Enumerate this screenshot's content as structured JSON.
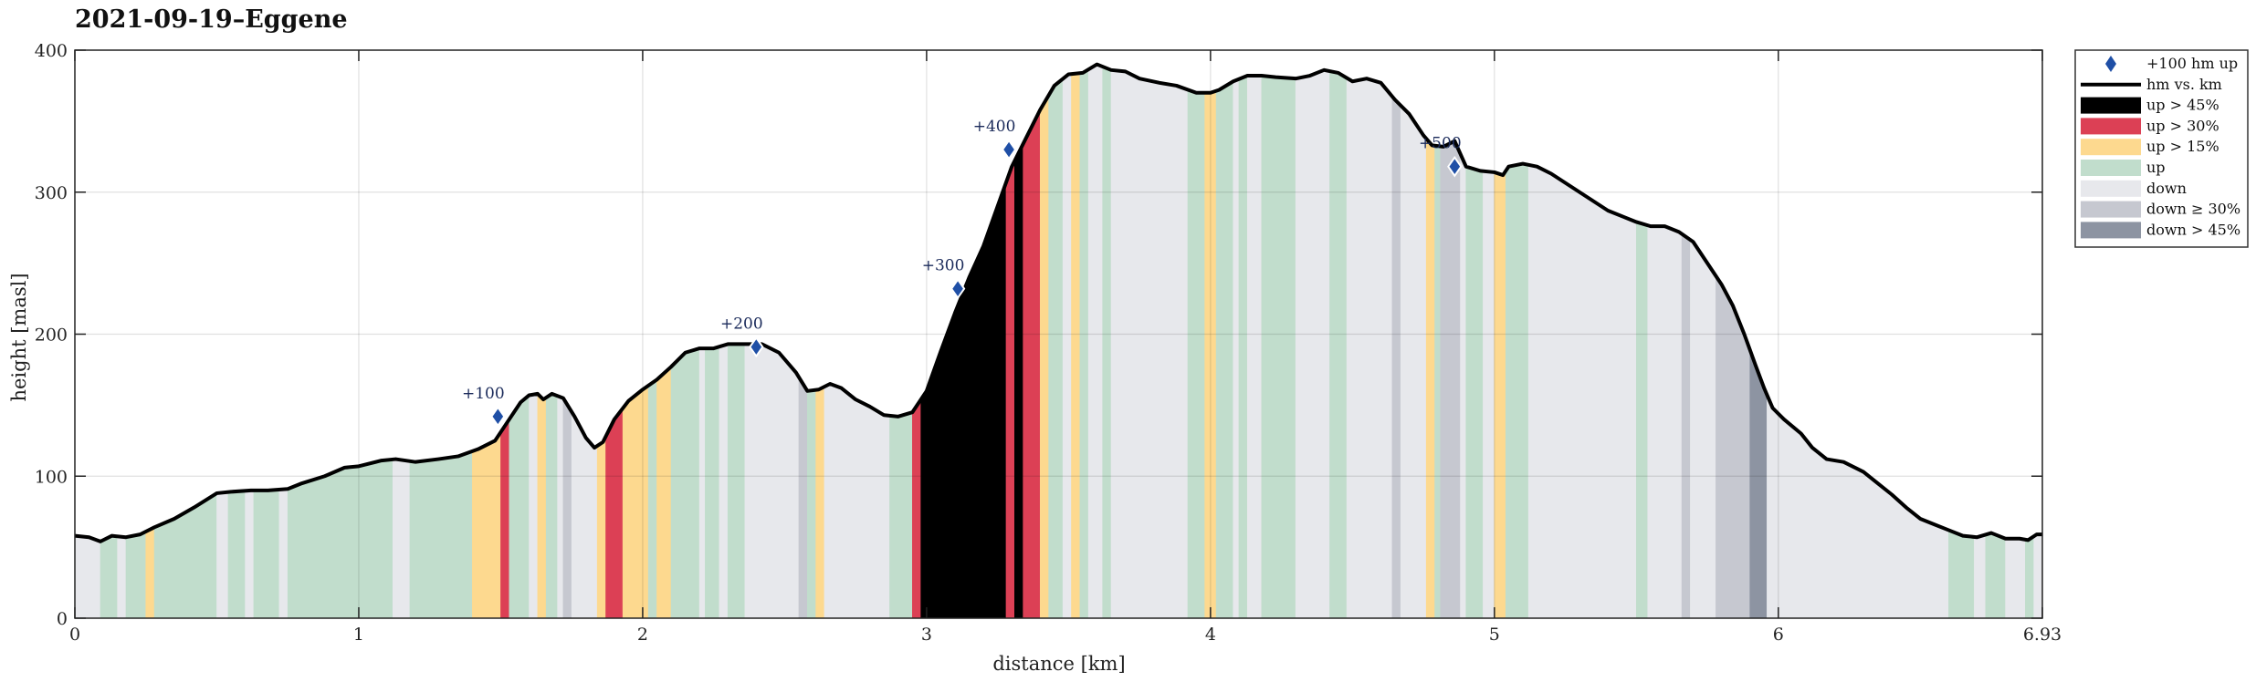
{
  "chart_data": {
    "type": "area",
    "title": "2021-09-19–Eggene",
    "xlabel": "distance [km]",
    "ylabel": "height [masl]",
    "xlim": [
      0,
      6.93
    ],
    "ylim": [
      0,
      400
    ],
    "xticks": [
      0,
      1,
      2,
      3,
      4,
      5,
      6,
      6.93
    ],
    "xtick_labels": [
      "0",
      "1",
      "2",
      "3",
      "4",
      "5",
      "6",
      "6.93"
    ],
    "yticks": [
      0,
      100,
      200,
      300,
      400
    ],
    "ytick_labels": [
      "0",
      "100",
      "200",
      "300",
      "400"
    ],
    "grid": true,
    "legend_position": "outside-top-right",
    "colors": {
      "line": "#000000",
      "marker": "#1f4fa6",
      "up_gt_45": "#000000",
      "up_gt_30": "#dc4055",
      "up_gt_15": "#fdd98f",
      "up": "#c1ddcc",
      "down": "#e7e8ec",
      "down_ge_30": "#c6c8d0",
      "down_gt_45": "#8d94a2"
    },
    "legend": [
      {
        "key": "marker",
        "label": "+100 hm up"
      },
      {
        "key": "line",
        "label": "hm vs. km"
      },
      {
        "key": "up_gt_45",
        "label": "up > 45%"
      },
      {
        "key": "up_gt_30",
        "label": "up > 30%"
      },
      {
        "key": "up_gt_15",
        "label": "up > 15%"
      },
      {
        "key": "up",
        "label": "up"
      },
      {
        "key": "down",
        "label": "down"
      },
      {
        "key": "down_ge_30",
        "label": "down ≥ 30%"
      },
      {
        "key": "down_gt_45",
        "label": "down > 45%"
      }
    ],
    "profile": [
      [
        0,
        58
      ],
      [
        0.05,
        57
      ],
      [
        0.09,
        54
      ],
      [
        0.13,
        58
      ],
      [
        0.18,
        57
      ],
      [
        0.23,
        59
      ],
      [
        0.28,
        64
      ],
      [
        0.35,
        70
      ],
      [
        0.42,
        78
      ],
      [
        0.5,
        88
      ],
      [
        0.55,
        89
      ],
      [
        0.62,
        90
      ],
      [
        0.68,
        90
      ],
      [
        0.75,
        91
      ],
      [
        0.8,
        95
      ],
      [
        0.88,
        100
      ],
      [
        0.95,
        106
      ],
      [
        1.0,
        107
      ],
      [
        1.08,
        111
      ],
      [
        1.13,
        112
      ],
      [
        1.2,
        110
      ],
      [
        1.28,
        112
      ],
      [
        1.35,
        114
      ],
      [
        1.42,
        119
      ],
      [
        1.48,
        125
      ],
      [
        1.53,
        140
      ],
      [
        1.57,
        152
      ],
      [
        1.6,
        157
      ],
      [
        1.63,
        158
      ],
      [
        1.65,
        154
      ],
      [
        1.68,
        158
      ],
      [
        1.72,
        155
      ],
      [
        1.76,
        142
      ],
      [
        1.8,
        127
      ],
      [
        1.83,
        120
      ],
      [
        1.86,
        124
      ],
      [
        1.9,
        140
      ],
      [
        1.95,
        153
      ],
      [
        2.0,
        161
      ],
      [
        2.05,
        168
      ],
      [
        2.1,
        177
      ],
      [
        2.15,
        187
      ],
      [
        2.2,
        190
      ],
      [
        2.25,
        190
      ],
      [
        2.3,
        193
      ],
      [
        2.35,
        193
      ],
      [
        2.42,
        193
      ],
      [
        2.48,
        187
      ],
      [
        2.54,
        173
      ],
      [
        2.58,
        160
      ],
      [
        2.62,
        161
      ],
      [
        2.66,
        165
      ],
      [
        2.7,
        162
      ],
      [
        2.75,
        154
      ],
      [
        2.8,
        149
      ],
      [
        2.85,
        143
      ],
      [
        2.9,
        142
      ],
      [
        2.95,
        145
      ],
      [
        3.0,
        160
      ],
      [
        3.05,
        188
      ],
      [
        3.1,
        215
      ],
      [
        3.15,
        240
      ],
      [
        3.2,
        262
      ],
      [
        3.25,
        290
      ],
      [
        3.3,
        318
      ],
      [
        3.35,
        338
      ],
      [
        3.4,
        358
      ],
      [
        3.45,
        375
      ],
      [
        3.5,
        383
      ],
      [
        3.55,
        384
      ],
      [
        3.6,
        390
      ],
      [
        3.65,
        386
      ],
      [
        3.7,
        385
      ],
      [
        3.75,
        380
      ],
      [
        3.82,
        377
      ],
      [
        3.88,
        375
      ],
      [
        3.95,
        370
      ],
      [
        4.0,
        370
      ],
      [
        4.03,
        372
      ],
      [
        4.08,
        378
      ],
      [
        4.13,
        382
      ],
      [
        4.18,
        382
      ],
      [
        4.23,
        381
      ],
      [
        4.3,
        380
      ],
      [
        4.35,
        382
      ],
      [
        4.4,
        386
      ],
      [
        4.45,
        384
      ],
      [
        4.5,
        378
      ],
      [
        4.55,
        380
      ],
      [
        4.6,
        377
      ],
      [
        4.65,
        365
      ],
      [
        4.7,
        355
      ],
      [
        4.75,
        340
      ],
      [
        4.78,
        333
      ],
      [
        4.82,
        332
      ],
      [
        4.86,
        336
      ],
      [
        4.9,
        318
      ],
      [
        4.95,
        315
      ],
      [
        5.0,
        314
      ],
      [
        5.03,
        312
      ],
      [
        5.05,
        318
      ],
      [
        5.1,
        320
      ],
      [
        5.15,
        318
      ],
      [
        5.2,
        313
      ],
      [
        5.3,
        300
      ],
      [
        5.4,
        287
      ],
      [
        5.5,
        279
      ],
      [
        5.55,
        276
      ],
      [
        5.6,
        276
      ],
      [
        5.65,
        272
      ],
      [
        5.7,
        265
      ],
      [
        5.75,
        250
      ],
      [
        5.8,
        235
      ],
      [
        5.84,
        220
      ],
      [
        5.88,
        200
      ],
      [
        5.92,
        178
      ],
      [
        5.95,
        162
      ],
      [
        5.98,
        148
      ],
      [
        6.02,
        140
      ],
      [
        6.08,
        130
      ],
      [
        6.12,
        120
      ],
      [
        6.17,
        112
      ],
      [
        6.23,
        110
      ],
      [
        6.3,
        103
      ],
      [
        6.35,
        95
      ],
      [
        6.4,
        87
      ],
      [
        6.45,
        78
      ],
      [
        6.5,
        70
      ],
      [
        6.55,
        66
      ],
      [
        6.6,
        62
      ],
      [
        6.65,
        58
      ],
      [
        6.7,
        57
      ],
      [
        6.75,
        60
      ],
      [
        6.8,
        56
      ],
      [
        6.85,
        56
      ],
      [
        6.88,
        55
      ],
      [
        6.91,
        59
      ],
      [
        6.93,
        59
      ]
    ],
    "bands": [
      {
        "x0": 0.0,
        "x1": 0.09,
        "c": "down"
      },
      {
        "x0": 0.09,
        "x1": 0.15,
        "c": "up"
      },
      {
        "x0": 0.15,
        "x1": 0.18,
        "c": "down"
      },
      {
        "x0": 0.18,
        "x1": 0.25,
        "c": "up"
      },
      {
        "x0": 0.25,
        "x1": 0.28,
        "c": "up_gt_15"
      },
      {
        "x0": 0.28,
        "x1": 0.5,
        "c": "up"
      },
      {
        "x0": 0.5,
        "x1": 0.54,
        "c": "down"
      },
      {
        "x0": 0.54,
        "x1": 0.6,
        "c": "up"
      },
      {
        "x0": 0.6,
        "x1": 0.63,
        "c": "down"
      },
      {
        "x0": 0.63,
        "x1": 0.72,
        "c": "up"
      },
      {
        "x0": 0.72,
        "x1": 0.75,
        "c": "down"
      },
      {
        "x0": 0.75,
        "x1": 1.12,
        "c": "up"
      },
      {
        "x0": 1.12,
        "x1": 1.18,
        "c": "down"
      },
      {
        "x0": 1.18,
        "x1": 1.4,
        "c": "up"
      },
      {
        "x0": 1.4,
        "x1": 1.5,
        "c": "up_gt_15"
      },
      {
        "x0": 1.5,
        "x1": 1.53,
        "c": "up_gt_30"
      },
      {
        "x0": 1.53,
        "x1": 1.6,
        "c": "up"
      },
      {
        "x0": 1.6,
        "x1": 1.63,
        "c": "down"
      },
      {
        "x0": 1.63,
        "x1": 1.66,
        "c": "up_gt_15"
      },
      {
        "x0": 1.66,
        "x1": 1.7,
        "c": "up"
      },
      {
        "x0": 1.7,
        "x1": 1.72,
        "c": "down"
      },
      {
        "x0": 1.72,
        "x1": 1.75,
        "c": "down_ge_30"
      },
      {
        "x0": 1.75,
        "x1": 1.84,
        "c": "down"
      },
      {
        "x0": 1.84,
        "x1": 1.87,
        "c": "up_gt_15"
      },
      {
        "x0": 1.87,
        "x1": 1.93,
        "c": "up_gt_30"
      },
      {
        "x0": 1.93,
        "x1": 2.02,
        "c": "up_gt_15"
      },
      {
        "x0": 2.02,
        "x1": 2.05,
        "c": "up"
      },
      {
        "x0": 2.05,
        "x1": 2.1,
        "c": "up_gt_15"
      },
      {
        "x0": 2.1,
        "x1": 2.2,
        "c": "up"
      },
      {
        "x0": 2.2,
        "x1": 2.22,
        "c": "down"
      },
      {
        "x0": 2.22,
        "x1": 2.27,
        "c": "up"
      },
      {
        "x0": 2.27,
        "x1": 2.3,
        "c": "down"
      },
      {
        "x0": 2.3,
        "x1": 2.36,
        "c": "up"
      },
      {
        "x0": 2.36,
        "x1": 2.55,
        "c": "down"
      },
      {
        "x0": 2.55,
        "x1": 2.58,
        "c": "down_ge_30"
      },
      {
        "x0": 2.58,
        "x1": 2.61,
        "c": "up"
      },
      {
        "x0": 2.61,
        "x1": 2.64,
        "c": "up_gt_15"
      },
      {
        "x0": 2.64,
        "x1": 2.87,
        "c": "down"
      },
      {
        "x0": 2.87,
        "x1": 2.95,
        "c": "up"
      },
      {
        "x0": 2.95,
        "x1": 2.98,
        "c": "up_gt_30"
      },
      {
        "x0": 2.98,
        "x1": 3.28,
        "c": "up_gt_45"
      },
      {
        "x0": 3.28,
        "x1": 3.31,
        "c": "up_gt_30"
      },
      {
        "x0": 3.31,
        "x1": 3.34,
        "c": "up_gt_45"
      },
      {
        "x0": 3.34,
        "x1": 3.4,
        "c": "up_gt_30"
      },
      {
        "x0": 3.4,
        "x1": 3.43,
        "c": "up_gt_15"
      },
      {
        "x0": 3.43,
        "x1": 3.48,
        "c": "up"
      },
      {
        "x0": 3.48,
        "x1": 3.51,
        "c": "down"
      },
      {
        "x0": 3.51,
        "x1": 3.54,
        "c": "up_gt_15"
      },
      {
        "x0": 3.54,
        "x1": 3.57,
        "c": "up"
      },
      {
        "x0": 3.57,
        "x1": 3.62,
        "c": "down"
      },
      {
        "x0": 3.62,
        "x1": 3.65,
        "c": "up"
      },
      {
        "x0": 3.65,
        "x1": 3.92,
        "c": "down"
      },
      {
        "x0": 3.92,
        "x1": 3.98,
        "c": "up"
      },
      {
        "x0": 3.98,
        "x1": 4.02,
        "c": "up_gt_15"
      },
      {
        "x0": 4.02,
        "x1": 4.08,
        "c": "up"
      },
      {
        "x0": 4.08,
        "x1": 4.1,
        "c": "down"
      },
      {
        "x0": 4.1,
        "x1": 4.13,
        "c": "up"
      },
      {
        "x0": 4.13,
        "x1": 4.18,
        "c": "down"
      },
      {
        "x0": 4.18,
        "x1": 4.3,
        "c": "up"
      },
      {
        "x0": 4.3,
        "x1": 4.42,
        "c": "down"
      },
      {
        "x0": 4.42,
        "x1": 4.48,
        "c": "up"
      },
      {
        "x0": 4.48,
        "x1": 4.64,
        "c": "down"
      },
      {
        "x0": 4.64,
        "x1": 4.67,
        "c": "down_ge_30"
      },
      {
        "x0": 4.67,
        "x1": 4.76,
        "c": "down"
      },
      {
        "x0": 4.76,
        "x1": 4.79,
        "c": "up_gt_15"
      },
      {
        "x0": 4.79,
        "x1": 4.81,
        "c": "up"
      },
      {
        "x0": 4.81,
        "x1": 4.88,
        "c": "down_ge_30"
      },
      {
        "x0": 4.88,
        "x1": 4.9,
        "c": "down"
      },
      {
        "x0": 4.9,
        "x1": 4.96,
        "c": "up"
      },
      {
        "x0": 4.96,
        "x1": 5.0,
        "c": "down"
      },
      {
        "x0": 5.0,
        "x1": 5.04,
        "c": "up_gt_15"
      },
      {
        "x0": 5.04,
        "x1": 5.12,
        "c": "up"
      },
      {
        "x0": 5.12,
        "x1": 5.5,
        "c": "down"
      },
      {
        "x0": 5.5,
        "x1": 5.54,
        "c": "up"
      },
      {
        "x0": 5.54,
        "x1": 5.66,
        "c": "down"
      },
      {
        "x0": 5.66,
        "x1": 5.69,
        "c": "down_ge_30"
      },
      {
        "x0": 5.69,
        "x1": 5.78,
        "c": "down"
      },
      {
        "x0": 5.78,
        "x1": 5.9,
        "c": "down_ge_30"
      },
      {
        "x0": 5.9,
        "x1": 5.96,
        "c": "down_gt_45"
      },
      {
        "x0": 5.96,
        "x1": 6.6,
        "c": "down"
      },
      {
        "x0": 6.6,
        "x1": 6.69,
        "c": "up"
      },
      {
        "x0": 6.69,
        "x1": 6.73,
        "c": "down"
      },
      {
        "x0": 6.73,
        "x1": 6.8,
        "c": "up"
      },
      {
        "x0": 6.8,
        "x1": 6.87,
        "c": "down"
      },
      {
        "x0": 6.87,
        "x1": 6.9,
        "c": "up"
      },
      {
        "x0": 6.9,
        "x1": 6.93,
        "c": "down"
      }
    ],
    "markers": [
      {
        "x": 1.49,
        "y": 142,
        "label": "+100"
      },
      {
        "x": 2.4,
        "y": 191,
        "label": "+200"
      },
      {
        "x": 3.11,
        "y": 232,
        "label": "+300"
      },
      {
        "x": 3.29,
        "y": 330,
        "label": "+400"
      },
      {
        "x": 4.86,
        "y": 318,
        "label": "+500"
      }
    ]
  }
}
